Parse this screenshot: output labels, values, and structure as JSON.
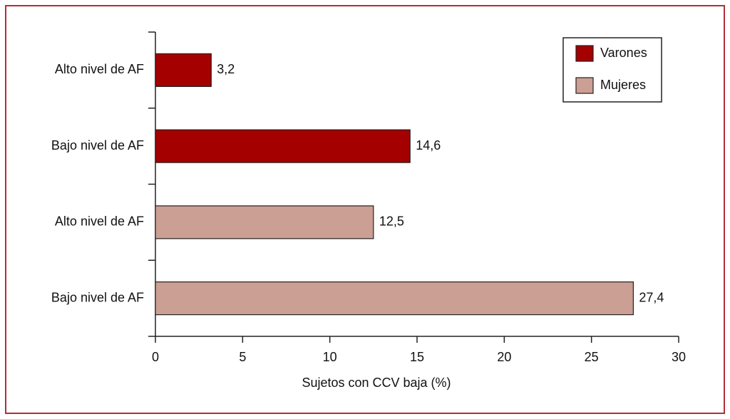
{
  "chart_data": {
    "type": "hbar",
    "categories": [
      "Alto nivel de AF",
      "Bajo nivel de AF",
      "Alto nivel de AF",
      "Bajo nivel de AF"
    ],
    "series": [
      {
        "name": "Varones",
        "color": "#a50000",
        "values": [
          3.2,
          14.6,
          null,
          null
        ],
        "value_labels": [
          "3,2",
          "14,6",
          null,
          null
        ]
      },
      {
        "name": "Mujeres",
        "color": "#cc9f94",
        "values": [
          null,
          null,
          12.5,
          27.4
        ],
        "value_labels": [
          null,
          null,
          "12,5",
          "27,4"
        ]
      }
    ],
    "xlabel": "Sujetos con CCV baja (%)",
    "xlim": [
      0,
      30
    ],
    "xticks": [
      0,
      5,
      10,
      15,
      20,
      25,
      30
    ],
    "legend": "upper right",
    "grid": false
  }
}
